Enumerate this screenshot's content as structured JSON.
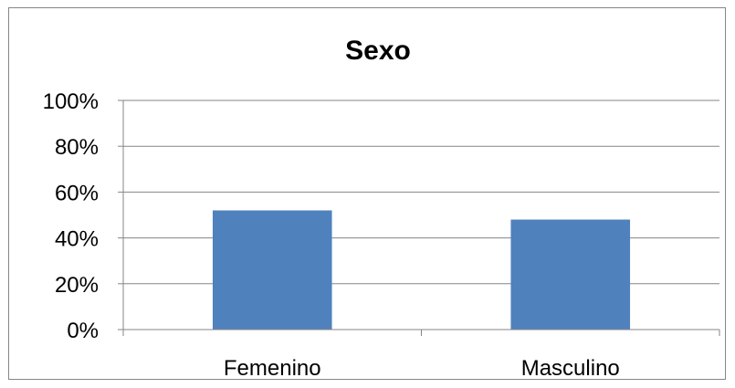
{
  "chart_data": {
    "type": "bar",
    "title": "Sexo",
    "categories": [
      "Femenino",
      "Masculino"
    ],
    "values": [
      52,
      48
    ],
    "ylim": [
      0,
      100
    ],
    "yticks": [
      0,
      20,
      40,
      60,
      80,
      100
    ],
    "ytick_labels": [
      "0%",
      "20%",
      "40%",
      "60%",
      "80%",
      "100%"
    ],
    "grid": true,
    "legend": "none",
    "bar_color": "#4F81BD"
  }
}
